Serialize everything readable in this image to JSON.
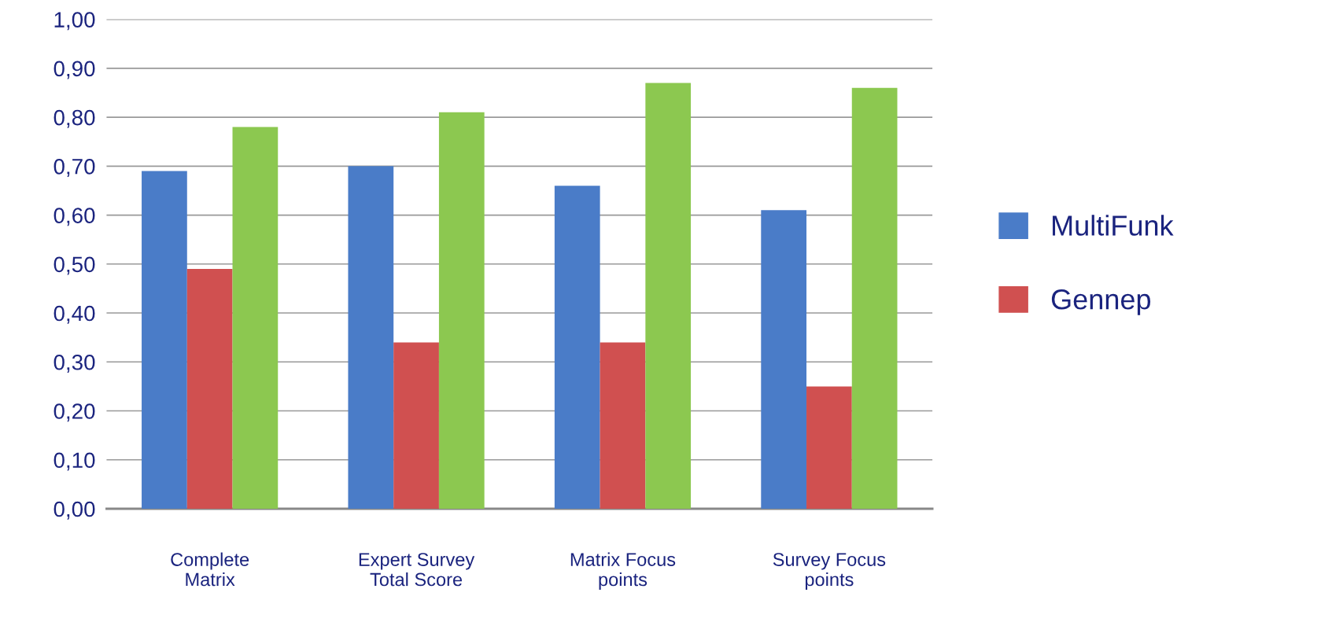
{
  "chart_data": {
    "type": "bar",
    "categories": [
      "Complete\nMatrix",
      "Expert Survey\nTotal Score",
      "Matrix Focus\npoints",
      "Survey Focus\npoints"
    ],
    "series": [
      {
        "name": "MultiFunk",
        "color": "#4a7cc8",
        "values": [
          0.69,
          0.7,
          0.66,
          0.61
        ]
      },
      {
        "name": "Gennep",
        "color": "#d05050",
        "values": [
          0.49,
          0.34,
          0.34,
          0.25
        ]
      },
      {
        "color": "#8cc850",
        "values": [
          0.78,
          0.81,
          0.87,
          0.86
        ]
      }
    ],
    "ylim": [
      0,
      1
    ],
    "yticks": [
      {
        "value": 0,
        "label": "0,00"
      },
      {
        "value": 0.1,
        "label": "0,10"
      },
      {
        "value": 0.2,
        "label": "0,20"
      },
      {
        "value": 0.3,
        "label": "0,30"
      },
      {
        "value": 0.4,
        "label": "0,40"
      },
      {
        "value": 0.5,
        "label": "0,50"
      },
      {
        "value": 0.6,
        "label": "0,60"
      },
      {
        "value": 0.7,
        "label": "0,70"
      },
      {
        "value": 0.8,
        "label": "0,80"
      },
      {
        "value": 0.9,
        "label": "0,90"
      },
      {
        "value": 1.0,
        "label": "1,00"
      }
    ],
    "grid": "y",
    "legend": "right"
  }
}
